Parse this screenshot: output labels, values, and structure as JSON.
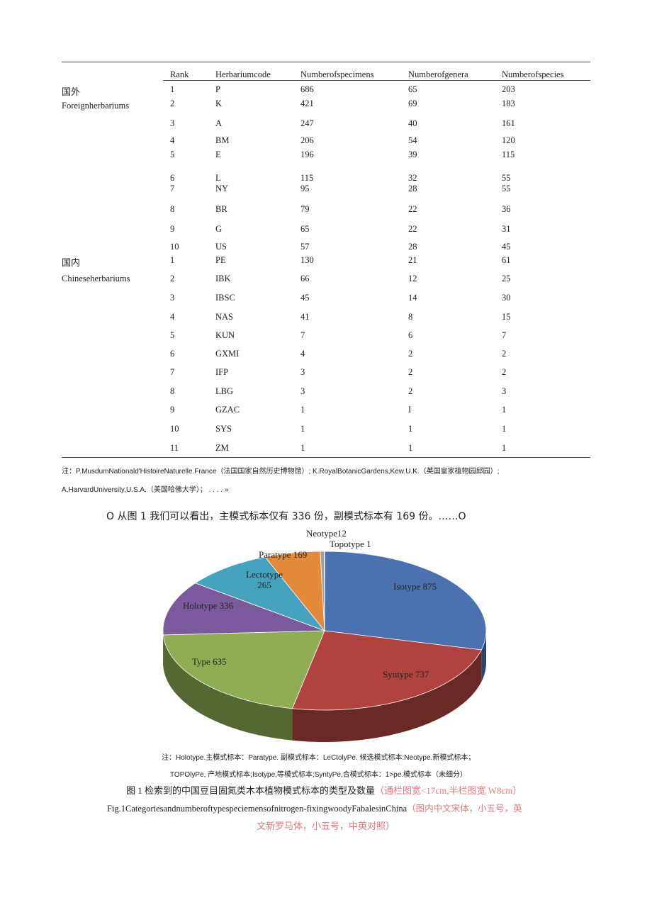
{
  "table": {
    "headers": [
      "Rank",
      "Herbariumcode",
      "Numberofspecimens",
      "Numberofgenera",
      "Numberofspecies"
    ],
    "groups": [
      {
        "label_cn": "国外",
        "label_en": "Foreignherbariums"
      },
      {
        "label_cn": "国内",
        "label_en": "Chineseherbariums"
      }
    ],
    "rows": [
      [
        "1",
        "P",
        "686",
        "65",
        "203"
      ],
      [
        "2",
        "K",
        "421",
        "69",
        "183"
      ],
      [
        "3",
        "A",
        "247",
        "40",
        "161"
      ],
      [
        "4",
        "BM",
        "206",
        "54",
        "120"
      ],
      [
        "5",
        "E",
        "196",
        "39",
        "115"
      ],
      [
        "6",
        "L",
        "115",
        "32",
        "55"
      ],
      [
        "7",
        "NY",
        "95",
        "28",
        "55"
      ],
      [
        "8",
        "BR",
        "79",
        "22",
        "36"
      ],
      [
        "9",
        "G",
        "65",
        "22",
        "31"
      ],
      [
        "10",
        "US",
        "57",
        "28",
        "45"
      ],
      [
        "1",
        "PE",
        "130",
        "21",
        "61"
      ],
      [
        "2",
        "IBK",
        "66",
        "12",
        "25"
      ],
      [
        "3",
        "IBSC",
        "45",
        "14",
        "30"
      ],
      [
        "4",
        "NAS",
        "41",
        "8",
        "15"
      ],
      [
        "5",
        "KUN",
        "7",
        "6",
        "7"
      ],
      [
        "6",
        "GXMI",
        "4",
        "2",
        "2"
      ],
      [
        "7",
        "IFP",
        "3",
        "2",
        "2"
      ],
      [
        "8",
        "LBG",
        "3",
        "2",
        "3"
      ],
      [
        "9",
        "GZAC",
        "1",
        "I",
        "1"
      ],
      [
        "10",
        "SYS",
        "1",
        "1",
        "1"
      ],
      [
        "11",
        "ZM",
        "1",
        "1",
        "1"
      ]
    ],
    "note_line1": "注：P.MusdumNationald'HistoireNaturelle.France（法国国家自然历史博物馆）; K.RoyalBotanicGardens,Kew.U.K.（英国皇家植物园邱园）;",
    "note_line2": "A,HarvardUniversity,U.S.A.（美国哈佛大学）；  . . . . »"
  },
  "paragraph": "O 从图 1 我们可以看出，主模式标本仅有 336 份，副模式标本有 169 份。……O",
  "chart_data": {
    "type": "pie",
    "style": "3d",
    "slices": [
      {
        "label": "Isotype 875",
        "name": "Isotype",
        "value": 875,
        "color": "#4a72b0"
      },
      {
        "label": "Syntype 737",
        "name": "Syntype",
        "value": 737,
        "color": "#b0433f"
      },
      {
        "label": "Type 635",
        "name": "Type",
        "value": 635,
        "color": "#8fad52"
      },
      {
        "label": "Holotype 336",
        "name": "Holotype",
        "value": 336,
        "color": "#7a5a9c"
      },
      {
        "label": "Lectotype 265",
        "name": "Lectotype",
        "value": 265,
        "color": "#44a2bf"
      },
      {
        "label": "Paratype 169",
        "name": "Paratype",
        "value": 169,
        "color": "#e38a3b"
      },
      {
        "label": "Neotype12",
        "name": "Neotype",
        "value": 12,
        "color": "#a0a0a0"
      },
      {
        "label": "Topotype 1",
        "name": "Topotype",
        "value": 1,
        "color": "#c9d6ea"
      }
    ]
  },
  "figure": {
    "note_line1": "注：Holotype.主模式标本：Paratype. 副模式标本：LeCtolyPe. 候选模式标本:Neotype.新模式标本；",
    "note_line2": "TOPOlyPe, 产地模式标本;Isotype,等模式标本;SyntyPe,合模式标本：1>pe.模式标本（未细分）",
    "caption_cn": "图 1 检索到的中国豆目固氮类木本植物模式标本的类型及数量",
    "caption_cn_note": "（通栏图宽<17cm,半栏图宽 W8cm）",
    "caption_en": "Fig.1Categoriesandnumberoftypespeciemensofnitrogen-fixingwoodyFabalesinChina",
    "caption_en_note1": "（图内中文宋体，小五号，英",
    "caption_en_note2": "文新罗马体，小五号，中英对照）"
  }
}
